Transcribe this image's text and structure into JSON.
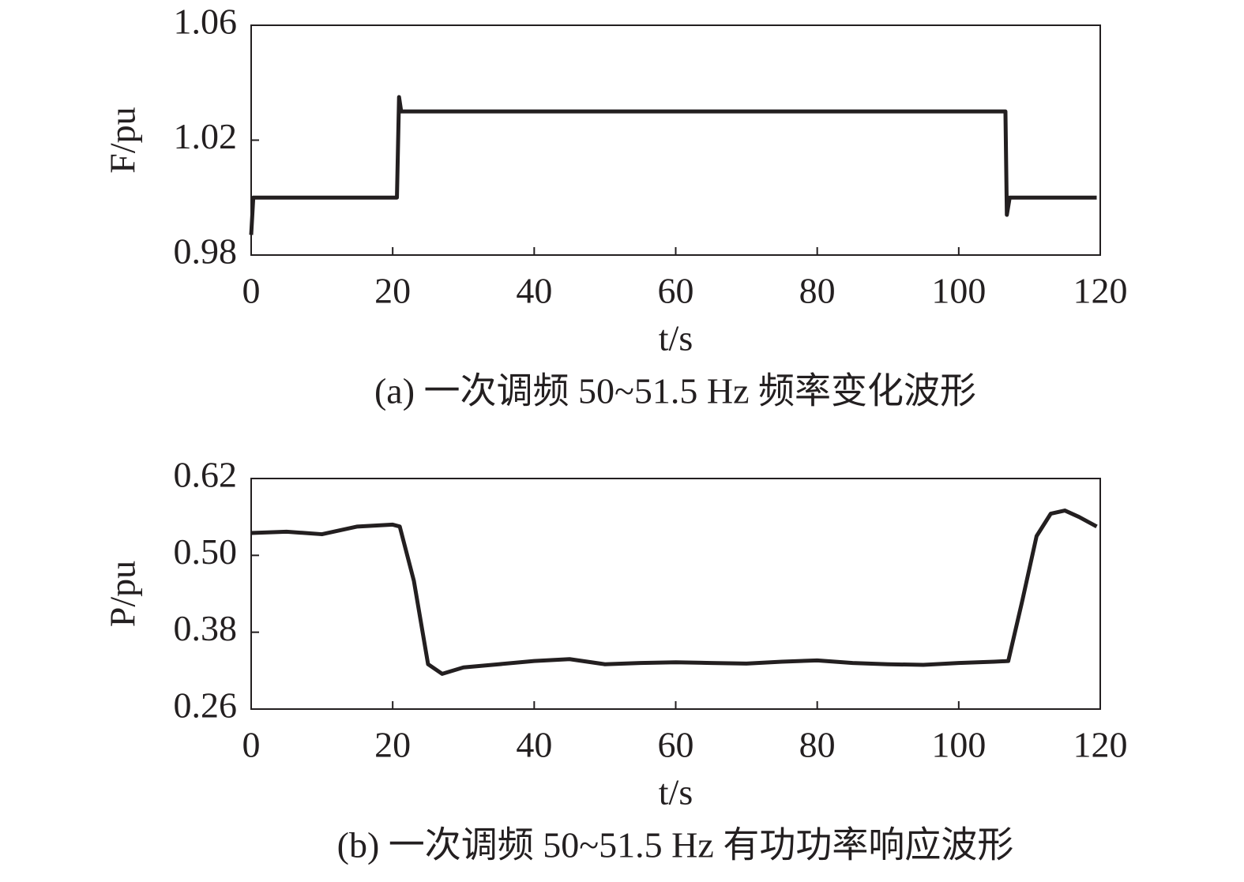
{
  "chart_data": [
    {
      "type": "line",
      "title": "(a) 一次调频 50~51.5 Hz 频率变化波形",
      "x_label": "t/s",
      "y_label": "F/pu",
      "xlim": [
        0,
        120
      ],
      "xticks": [
        0,
        20,
        40,
        60,
        80,
        100,
        120
      ],
      "ylim": [
        0.98,
        1.06
      ],
      "yticks": [
        0.98,
        1.02,
        1.06
      ],
      "x": [
        0,
        0.3,
        20.6,
        20.9,
        21.2,
        106.6,
        106.8,
        107.2,
        119.5
      ],
      "series": [
        {
          "color": "#231f20",
          "values": [
            0.987,
            1.0,
            1.0,
            1.035,
            1.03,
            1.03,
            0.994,
            1.0,
            1.0
          ]
        }
      ]
    },
    {
      "type": "line",
      "title": "(b) 一次调频 50~51.5 Hz 有功功率响应波形",
      "x_label": "t/s",
      "y_label": "P/pu",
      "xlim": [
        0,
        120
      ],
      "xticks": [
        0,
        20,
        40,
        60,
        80,
        100,
        120
      ],
      "ylim": [
        0.26,
        0.62
      ],
      "yticks": [
        0.26,
        0.38,
        {
          "value": 0.5,
          "label": "0.50"
        },
        0.62
      ],
      "x": [
        0,
        5,
        10,
        15,
        20,
        21,
        23,
        25,
        27,
        30,
        35,
        40,
        45,
        50,
        55,
        60,
        65,
        70,
        75,
        80,
        85,
        90,
        95,
        100,
        105,
        107,
        109,
        111,
        113,
        115,
        117,
        119.5
      ],
      "series": [
        {
          "color": "#231f20",
          "values": [
            0.535,
            0.537,
            0.533,
            0.545,
            0.548,
            0.545,
            0.46,
            0.33,
            0.315,
            0.325,
            0.33,
            0.335,
            0.338,
            0.33,
            0.332,
            0.333,
            0.332,
            0.331,
            0.334,
            0.336,
            0.332,
            0.33,
            0.329,
            0.332,
            0.334,
            0.335,
            0.43,
            0.53,
            0.565,
            0.57,
            0.56,
            0.545
          ]
        }
      ]
    }
  ]
}
